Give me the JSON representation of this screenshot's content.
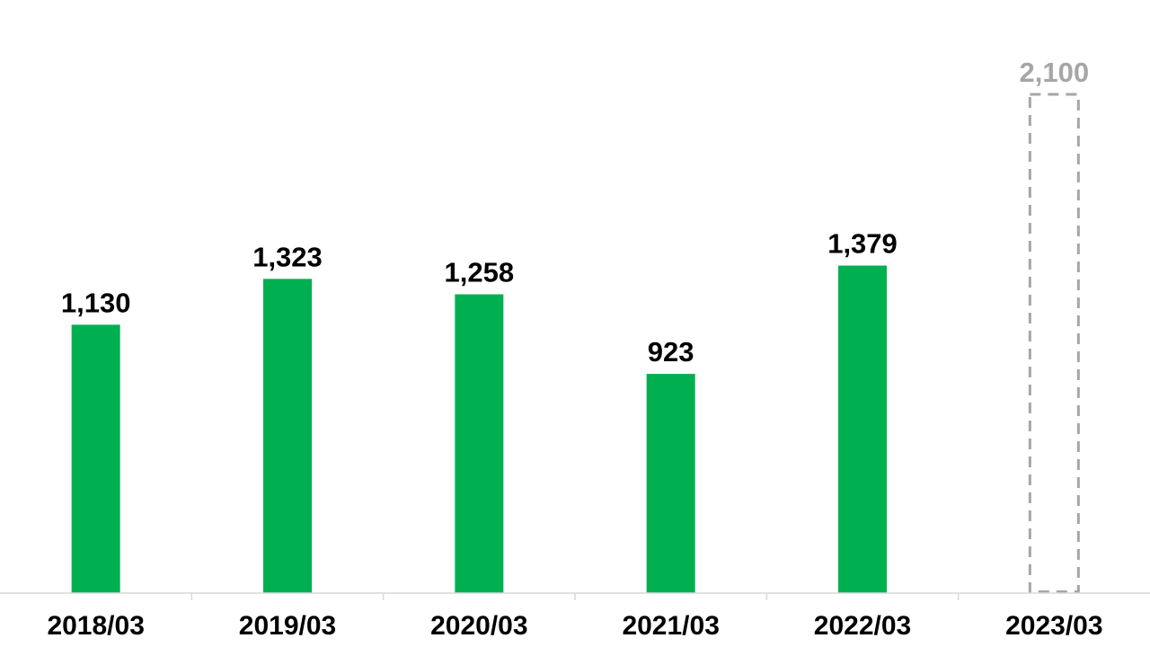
{
  "chart_data": {
    "type": "bar",
    "categories": [
      "2018/03",
      "2019/03",
      "2020/03",
      "2021/03",
      "2022/03",
      "2023/03"
    ],
    "values": [
      1130,
      1323,
      1258,
      923,
      1379,
      2100
    ],
    "value_labels": [
      "1,130",
      "1,323",
      "1,258",
      "923",
      "1,379",
      "2,100"
    ],
    "forecast": [
      false,
      false,
      false,
      false,
      false,
      true
    ],
    "ylim": [
      0,
      2100
    ],
    "grid": false,
    "legend": "none",
    "colors": {
      "bar": "#00b050",
      "forecast": "#a6a6a6",
      "label": "#000000",
      "axis": "#d9d9d9"
    }
  }
}
